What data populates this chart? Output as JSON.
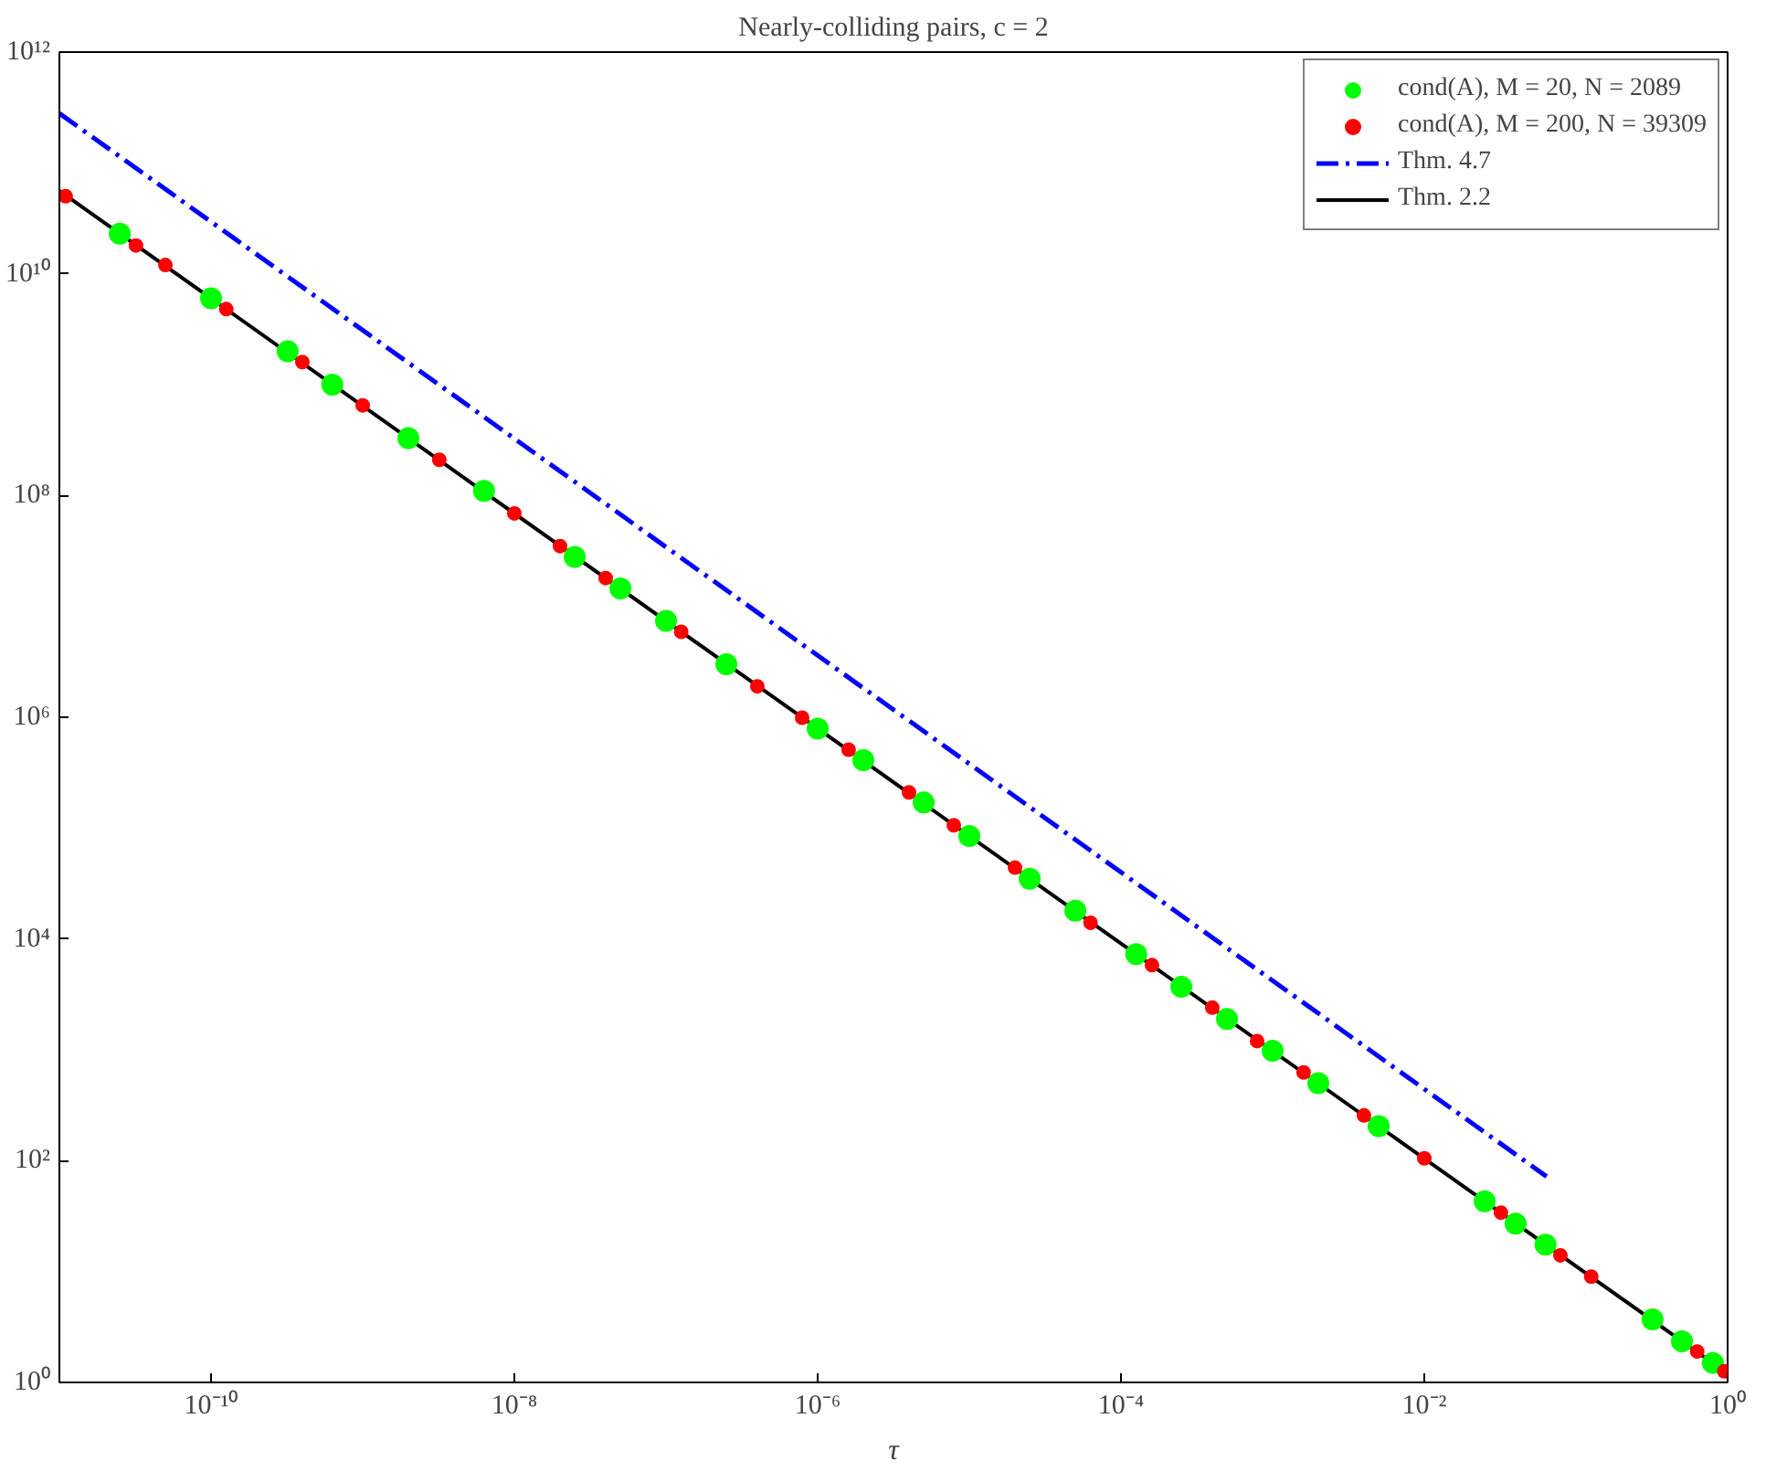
{
  "chart_data": {
    "type": "scatter",
    "title": "Nearly-colliding pairs, c = 2",
    "xlabel": "τ",
    "log": "xy",
    "grid": false,
    "legend": "top right",
    "xlim": [
      1e-11,
      1
    ],
    "ylim": [
      1,
      1000000000000.0
    ],
    "xticks": [
      {
        "value": 1e-10,
        "label": "10⁻¹⁰"
      },
      {
        "value": 1e-08,
        "label": "10⁻⁸"
      },
      {
        "value": 1e-06,
        "label": "10⁻⁶"
      },
      {
        "value": 0.0001,
        "label": "10⁻⁴"
      },
      {
        "value": 0.01,
        "label": "10⁻²"
      },
      {
        "value": 1,
        "label": "10⁰"
      }
    ],
    "yticks": [
      {
        "value": 1,
        "label": "10⁰"
      },
      {
        "value": 100,
        "label": "10²"
      },
      {
        "value": 10000,
        "label": "10⁴"
      },
      {
        "value": 1000000,
        "label": "10⁶"
      },
      {
        "value": 100000000,
        "label": "10⁸"
      },
      {
        "value": 10000000000,
        "label": "10¹⁰"
      },
      {
        "value": 1000000000000,
        "label": "10¹²"
      }
    ],
    "series": [
      {
        "name": "cond(A), M = 20, N = 2089",
        "marker": "circle",
        "color": "#00ff00",
        "x": [
          2.5e-11,
          1e-10,
          3.2e-10,
          6.3e-10,
          2e-09,
          6.3e-09,
          2.5e-08,
          5e-08,
          1e-07,
          2.5e-07,
          1e-06,
          2e-06,
          5e-06,
          1e-05,
          2.5e-05,
          5e-05,
          0.000126,
          0.00025,
          0.0005,
          0.001,
          0.002,
          0.005,
          0.025,
          0.04,
          0.063,
          0.32,
          0.5,
          0.8
        ],
        "values": [
          23000000000.0,
          6000000000.0,
          2000000000.0,
          1000000000.0,
          330000000.0,
          110000000.0,
          28000000.0,
          14500000.0,
          7400000.0,
          3000000.0,
          790000.0,
          410000.0,
          170000.0,
          85000.0,
          35000.0,
          18000.0,
          7300,
          3700,
          1900,
          980,
          500,
          205,
          43,
          27,
          17.5,
          3.7,
          2.35,
          1.5
        ]
      },
      {
        "name": "cond(A), M = 200, N = 39309",
        "marker": "circle",
        "color": "#ff0000",
        "x": [
          1.1e-11,
          3.2e-11,
          5e-11,
          1.26e-10,
          4e-10,
          1e-09,
          3.2e-09,
          1e-08,
          2e-08,
          4e-08,
          1.26e-07,
          4e-07,
          7.9e-07,
          1.6e-06,
          4e-06,
          7.9e-06,
          2e-05,
          6.3e-05,
          0.00016,
          0.0004,
          0.00079,
          0.0016,
          0.004,
          0.01,
          0.032,
          0.079,
          0.126,
          0.63,
          0.95
        ],
        "values": [
          50000000000.0,
          18000000000.0,
          12000000000.0,
          4800000000.0,
          1600000000.0,
          650000000.0,
          210000000.0,
          69000000.0,
          35000000.0,
          18000000.0,
          5900000.0,
          1900000.0,
          990000.0,
          510000.0,
          210000.0,
          106000.0,
          44000.0,
          14000.0,
          5800,
          2400,
          1200,
          625,
          256,
          105,
          34,
          14,
          9.0,
          1.9,
          1.26
        ]
      },
      {
        "name": "Thm. 4.7",
        "type": "line",
        "line_style": "dashdot",
        "color": "#0000ff",
        "x": [
          1e-11,
          0.064
        ],
        "values": [
          280000000000.0,
          72
        ]
      },
      {
        "name": "Thm. 2.2",
        "type": "line",
        "line_style": "solid",
        "color": "#000000",
        "x": [
          1e-11,
          1
        ],
        "values": [
          56000000000.0,
          1.2
        ]
      }
    ]
  }
}
